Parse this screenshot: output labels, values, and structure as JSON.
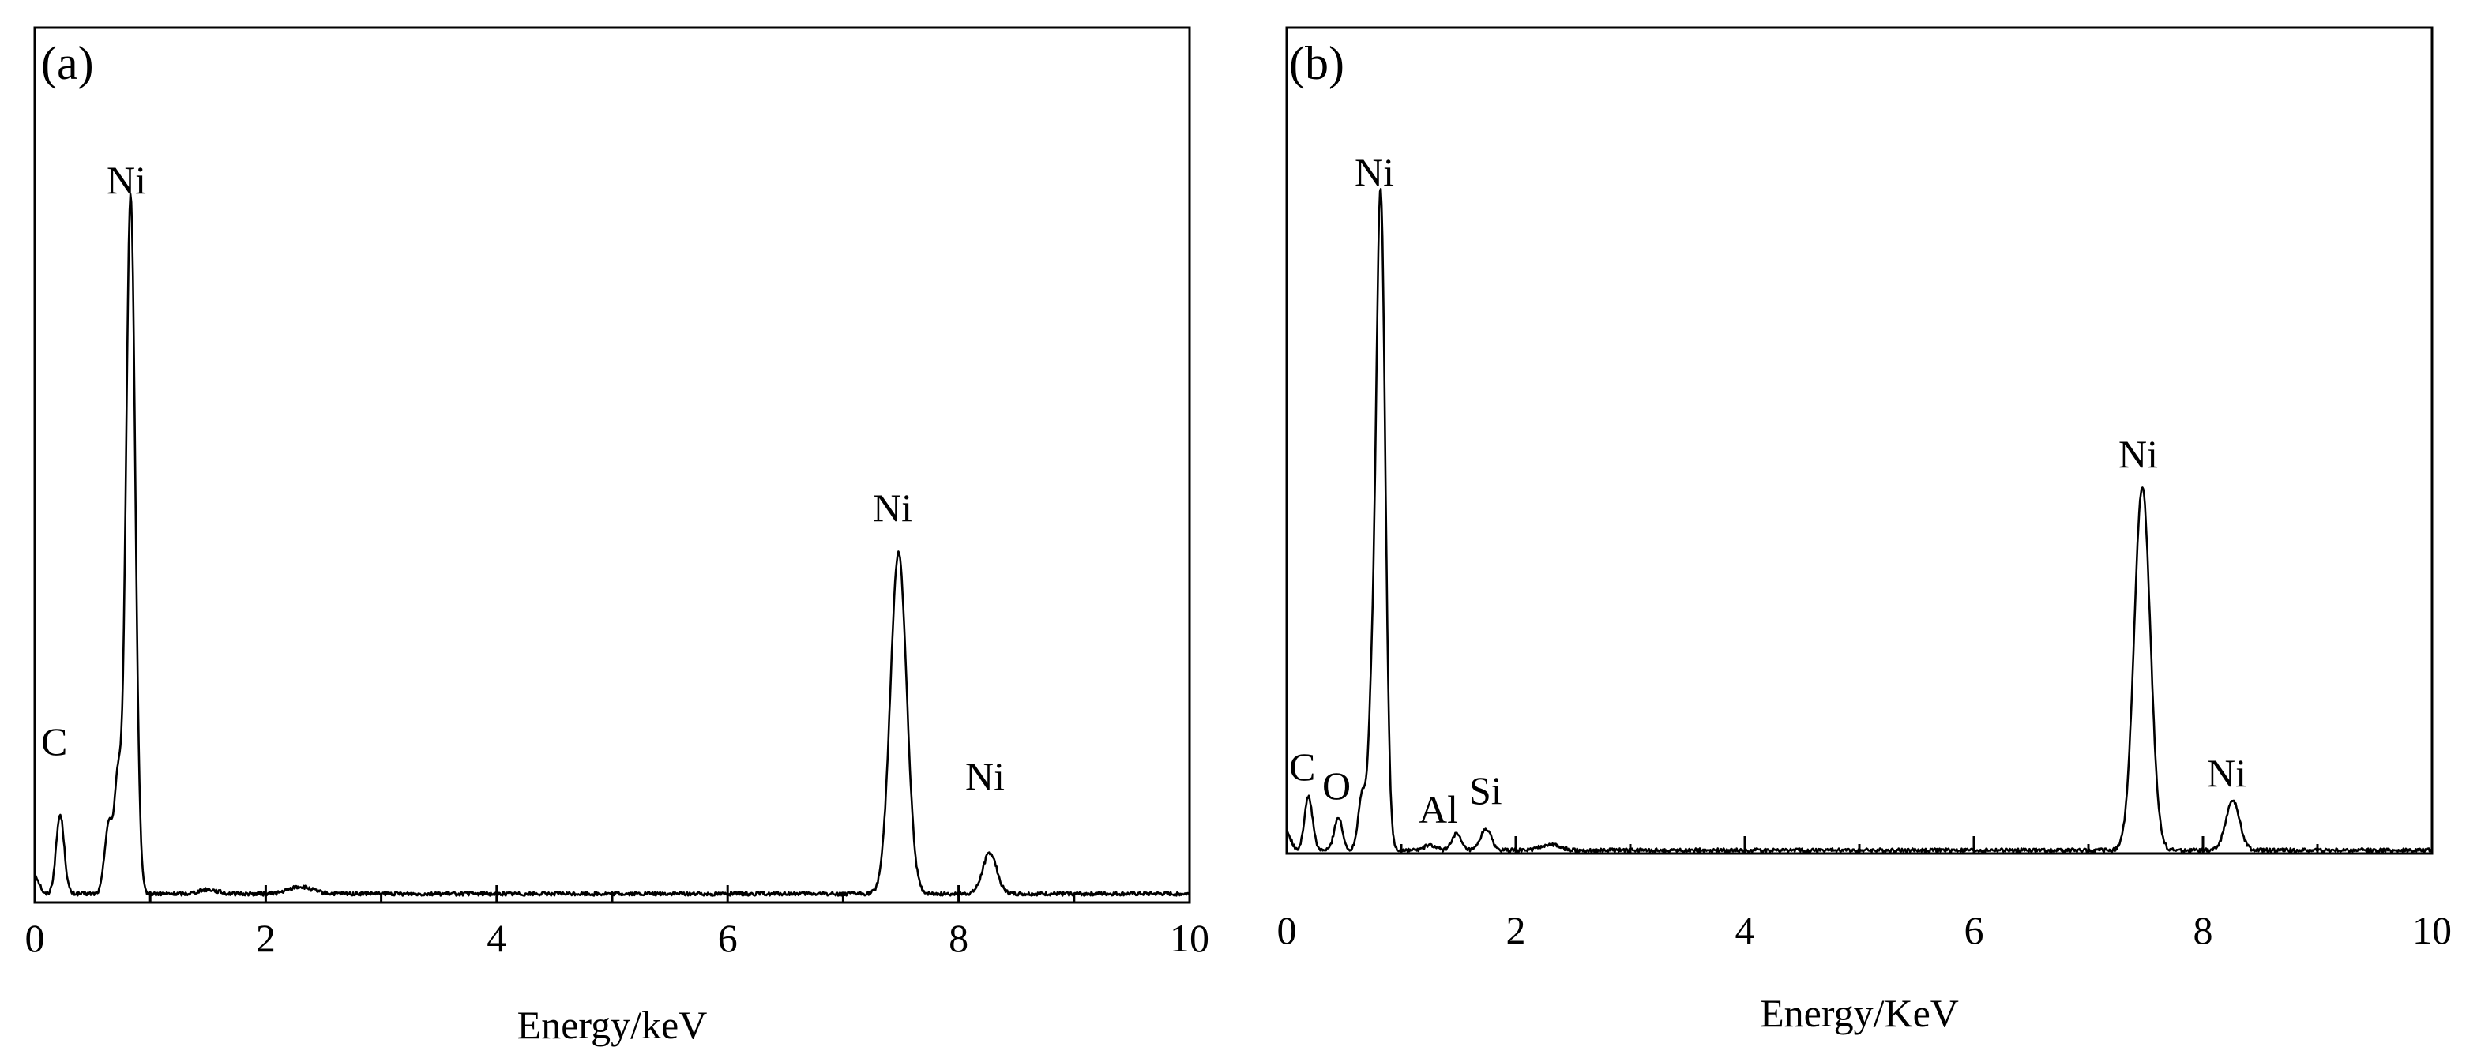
{
  "figure": {
    "panels": [
      {
        "panel_label": "(a)",
        "xlabel": "Energy/keV",
        "peak_labels": [
          {
            "text": "C",
            "x": 0.22
          },
          {
            "text": "Ni",
            "x": 0.85
          },
          {
            "text": "Ni",
            "x": 7.48
          },
          {
            "text": "Ni",
            "x": 8.27
          }
        ]
      },
      {
        "panel_label": "(b)",
        "xlabel": "Energy/KeV",
        "peak_labels": [
          {
            "text": "C",
            "x": 0.18
          },
          {
            "text": "O",
            "x": 0.45
          },
          {
            "text": "Al",
            "x": 1.45
          },
          {
            "text": "Si",
            "x": 1.72
          },
          {
            "text": "Ni",
            "x": 0.85
          },
          {
            "text": "Ni",
            "x": 7.48
          },
          {
            "text": "Ni",
            "x": 8.27
          }
        ]
      }
    ]
  },
  "chart_data": [
    {
      "type": "line",
      "title": "(a)",
      "xlabel": "Energy/keV",
      "ylabel": "",
      "xlim": [
        0,
        10
      ],
      "ylim": [
        0,
        100
      ],
      "x_ticks": [
        0,
        2,
        4,
        6,
        8,
        10
      ],
      "x_minor_step": 1,
      "y_ticks_shown": false,
      "grid": false,
      "legend": "none",
      "color": "#000000",
      "baseline": 1.0,
      "peaks": [
        {
          "label": "C",
          "center": 0.22,
          "height": 9.0,
          "width": 0.035
        },
        {
          "label": "",
          "center": 0.64,
          "height": 8.0,
          "width": 0.035
        },
        {
          "label": "",
          "center": 0.72,
          "height": 12.5,
          "width": 0.03
        },
        {
          "label": "Ni",
          "center": 0.83,
          "height": 80.0,
          "width": 0.04
        },
        {
          "label": "",
          "center": 1.5,
          "height": 0.5,
          "width": 0.08
        },
        {
          "label": "",
          "center": 2.3,
          "height": 0.8,
          "width": 0.1
        },
        {
          "label": "Ni",
          "center": 7.48,
          "height": 39.0,
          "width": 0.07
        },
        {
          "label": "Ni",
          "center": 8.27,
          "height": 4.7,
          "width": 0.06
        }
      ]
    },
    {
      "type": "line",
      "title": "(b)",
      "xlabel": "Energy/KeV",
      "ylabel": "",
      "xlim": [
        0,
        10
      ],
      "ylim": [
        0,
        100
      ],
      "x_ticks": [
        0,
        2,
        4,
        6,
        8,
        10
      ],
      "x_minor_step": 1,
      "y_ticks_shown": false,
      "grid": false,
      "legend": "none",
      "color": "#000000",
      "baseline": 0.4,
      "peaks": [
        {
          "label": "C",
          "center": 0.19,
          "height": 6.5,
          "width": 0.035
        },
        {
          "label": "O",
          "center": 0.45,
          "height": 4.0,
          "width": 0.035
        },
        {
          "label": "",
          "center": 0.66,
          "height": 7.0,
          "width": 0.035
        },
        {
          "label": "",
          "center": 0.74,
          "height": 13.0,
          "width": 0.03
        },
        {
          "label": "Ni",
          "center": 0.82,
          "height": 80.0,
          "width": 0.04
        },
        {
          "label": "",
          "center": 1.25,
          "height": 0.6,
          "width": 0.05
        },
        {
          "label": "Al",
          "center": 1.48,
          "height": 2.0,
          "width": 0.04
        },
        {
          "label": "Si",
          "center": 1.74,
          "height": 2.6,
          "width": 0.045
        },
        {
          "label": "",
          "center": 2.3,
          "height": 0.7,
          "width": 0.08
        },
        {
          "label": "Ni",
          "center": 7.47,
          "height": 44.0,
          "width": 0.07
        },
        {
          "label": "Ni",
          "center": 8.26,
          "height": 6.0,
          "width": 0.06
        }
      ]
    }
  ]
}
